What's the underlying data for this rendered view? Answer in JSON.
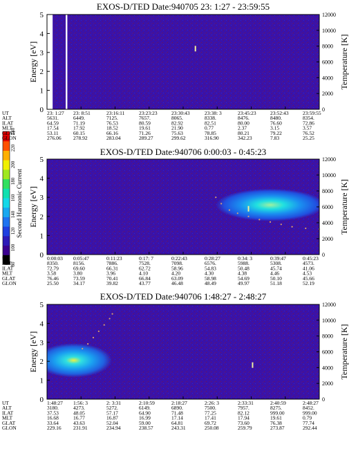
{
  "colors": {
    "background": "#ffffff",
    "plot_bg": "#3a12a8",
    "text": "#000000",
    "temp_trace": "#d8a070",
    "colorbar": [
      "#000000",
      "#3b0090",
      "#2d1ab8",
      "#1f3fe0",
      "#1e73f0",
      "#18a8f0",
      "#14d8e8",
      "#10e0b0",
      "#30e060",
      "#a0e820",
      "#f0f000",
      "#ffb000",
      "#ff5000",
      "#e00000"
    ]
  },
  "colorbar": {
    "label": "Second Harmonic Current",
    "ticks": [
      "80",
      "100",
      "120",
      "140",
      "160",
      "180",
      "200",
      "220",
      "240"
    ]
  },
  "chart_data": [
    {
      "type": "heatmap",
      "title": "EXOS-D/TED  Date:940705  23: 1:27 - 23:59:55",
      "ylabel": "Energy [eV]",
      "y2label": "Temperature [K]",
      "ylim": [
        0,
        5
      ],
      "y_ticks": [
        "0",
        "1",
        "2",
        "3",
        "4",
        "5"
      ],
      "y2lim": [
        0,
        12000
      ],
      "y2_ticks": [
        "0",
        "2000",
        "4000",
        "6000",
        "8000",
        "10000",
        "12000"
      ],
      "grid": false,
      "table_rows": [
        "UT",
        "ALT",
        "ILAT",
        "MLT",
        "GLAT",
        "GLON"
      ],
      "table_cols": [
        [
          "23: 1:27",
          "5631.",
          "64.59",
          "17.54",
          "53.11",
          "276.06"
        ],
        [
          "23: 8:51",
          "6449.",
          "71.19",
          "17.92",
          "60.15",
          "278.92"
        ],
        [
          "23:16:11",
          "7125.",
          "76.53",
          "18.52",
          "66.16",
          "283.04"
        ],
        [
          "23:23:23",
          "7657.",
          "80.59",
          "19.61",
          "71.26",
          "289.27"
        ],
        [
          "23:30:43",
          "8065.",
          "82.92",
          "21.90",
          "75.63",
          "299.62"
        ],
        [
          "23:38: 3",
          "8338.",
          "82.51",
          "0.77",
          "78.85",
          "316.90"
        ],
        [
          "23:45:23",
          "8476.",
          "80.00",
          "2.37",
          "80.21",
          "342.23"
        ],
        [
          "23:52:43",
          "8480.",
          "76.60",
          "3.15",
          "79.22",
          "7.83"
        ],
        [
          "23:59:55",
          "8354.",
          "72.86",
          "3.57",
          "76.52",
          "25.25"
        ]
      ],
      "features": [
        {
          "kind": "data_gap",
          "t0": 0.0,
          "t1": 0.055
        },
        {
          "kind": "data_gap",
          "t0": 0.07,
          "t1": 0.085
        },
        {
          "kind": "marker",
          "t": 0.545,
          "energy": 3.2
        }
      ],
      "temperature": []
    },
    {
      "type": "heatmap",
      "title": "EXOS-D/TED   Date:940706  0:00:03 - 0:45:23",
      "ylabel": "Energy [eV]",
      "y2label": "Temperature [K]",
      "ylim": [
        0,
        5
      ],
      "y_ticks": [
        "0",
        "1",
        "2",
        "3",
        "4",
        "5"
      ],
      "y2lim": [
        0,
        12000
      ],
      "y2_ticks": [
        "0",
        "2000",
        "4000",
        "6000",
        "8000",
        "10000",
        "12000"
      ],
      "grid": false,
      "table_rows": [
        "UT",
        "ALT",
        "ILAT",
        "MLT",
        "GLAT",
        "GLON"
      ],
      "table_cols": [
        [
          "0:00:03",
          "8350.",
          "72.79",
          "3.58",
          "76.46",
          "25.50"
        ],
        [
          "0:05:47",
          "8156.",
          "69.60",
          "3.80",
          "73.59",
          "34.17"
        ],
        [
          "0:11:23",
          "7886.",
          "66.31",
          "3.96",
          "70.41",
          "39.82"
        ],
        [
          "0:17: 7",
          "7528.",
          "62.72",
          "4.10",
          "66.84",
          "43.77"
        ],
        [
          "0:22:43",
          "7098.",
          "58.96",
          "4.20",
          "63.09",
          "46.48"
        ],
        [
          "0:28:27",
          "6576.",
          "54.83",
          "4.30",
          "58.98",
          "48.49"
        ],
        [
          "0:34: 3",
          "5988.",
          "50.48",
          "4.38",
          "54.69",
          "49.97"
        ],
        [
          "0:39:47",
          "5308.",
          "45.74",
          "4.46",
          "50.10",
          "51.18"
        ],
        [
          "0:45:23",
          "4573.",
          "41.06",
          "4.53",
          "45.66",
          "52.19"
        ]
      ],
      "features": [
        {
          "kind": "plasma_band",
          "t0": 0.6,
          "t1": 1.0,
          "energy_center": 2.6,
          "energy_width": 0.85
        },
        {
          "kind": "marker",
          "t": 0.74,
          "energy": 2.4
        }
      ],
      "temperature": [
        {
          "t": 0.62,
          "T": 7200
        },
        {
          "t": 0.64,
          "T": 6400
        },
        {
          "t": 0.67,
          "T": 5600
        },
        {
          "t": 0.7,
          "T": 5200
        },
        {
          "t": 0.74,
          "T": 4800
        },
        {
          "t": 0.78,
          "T": 4400
        },
        {
          "t": 0.82,
          "T": 4100
        },
        {
          "t": 0.86,
          "T": 3800
        },
        {
          "t": 0.9,
          "T": 3500
        },
        {
          "t": 0.95,
          "T": 3300
        },
        {
          "t": 1.0,
          "T": 3200
        }
      ]
    },
    {
      "type": "heatmap",
      "title": "EXOS-D/TED   Date:940706  1:48:27 - 2:48:27",
      "ylabel": "Energy [eV]",
      "y2label": "Temperature [K]",
      "ylim": [
        0,
        5
      ],
      "y_ticks": [
        "0",
        "1",
        "2",
        "3",
        "4",
        "5"
      ],
      "y2lim": [
        0,
        12000
      ],
      "y2_ticks": [
        "0",
        "2000",
        "4000",
        "6000",
        "8000",
        "10000",
        "12000"
      ],
      "grid": false,
      "table_rows": [
        "UT",
        "ALT",
        "ILAT",
        "MLT",
        "GLAT",
        "GLON"
      ],
      "table_cols": [
        [
          "1:48:27",
          "3180.",
          "37.53",
          "16.68",
          "33.64",
          "229.16"
        ],
        [
          "1:56: 3",
          "4273.",
          "48.05",
          "16.77",
          "43.63",
          "231.91"
        ],
        [
          "2: 3:31",
          "5272.",
          "57.17",
          "16.87",
          "52.04",
          "234.94"
        ],
        [
          "2:10:59",
          "6149.",
          "64.90",
          "16.99",
          "59.00",
          "238.57"
        ],
        [
          "2:18:27",
          "6890.",
          "71.48",
          "17.14",
          "64.81",
          "243.31"
        ],
        [
          "2:26: 3",
          "7500.",
          "77.25",
          "17.41",
          "69.72",
          "250.08"
        ],
        [
          "2:33:31",
          "7957.",
          "82.12",
          "17.94",
          "73.60",
          "259.79"
        ],
        [
          "2:40:59",
          "8275.",
          "999.00",
          "19.61",
          "76.38",
          "273.87"
        ],
        [
          "2:48:27",
          "8452.",
          "999.00",
          "0.79",
          "77.74",
          "292.44"
        ]
      ],
      "features": [
        {
          "kind": "plasma_band",
          "t0": 0.0,
          "t1": 0.28,
          "energy_center": 2.05,
          "energy_width": 0.9
        },
        {
          "kind": "marker",
          "t": 0.755,
          "energy": 1.8
        }
      ],
      "temperature": [
        {
          "t": 0.13,
          "T": 6400
        },
        {
          "t": 0.15,
          "T": 7000
        },
        {
          "t": 0.17,
          "T": 7800
        },
        {
          "t": 0.19,
          "T": 8600
        },
        {
          "t": 0.21,
          "T": 9400
        },
        {
          "t": 0.23,
          "T": 10200
        },
        {
          "t": 0.24,
          "T": 10800
        }
      ]
    }
  ]
}
